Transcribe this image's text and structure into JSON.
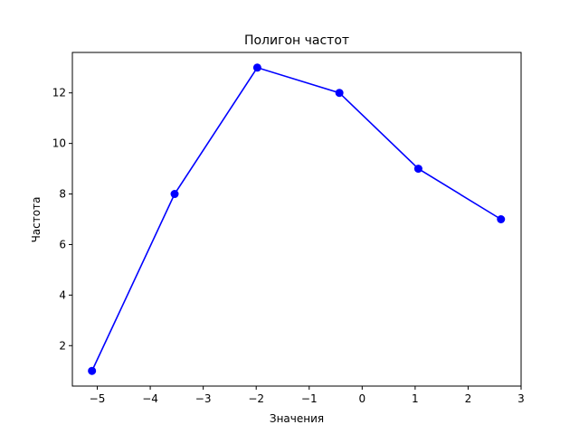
{
  "chart_data": {
    "type": "line",
    "title": "Полигон частот",
    "xlabel": "Значения",
    "ylabel": "Частота",
    "xlim": [
      -5.47,
      3.0
    ],
    "ylim": [
      0.4,
      13.6
    ],
    "xticks": [
      -5,
      -4,
      -3,
      -2,
      -1,
      0,
      1,
      2,
      3
    ],
    "xtick_labels": [
      "−5",
      "−4",
      "−3",
      "−2",
      "−1",
      "0",
      "1",
      "2",
      "3"
    ],
    "yticks": [
      2,
      4,
      6,
      8,
      10,
      12
    ],
    "ytick_labels": [
      "2",
      "4",
      "6",
      "8",
      "10",
      "12"
    ],
    "grid": false,
    "series": [
      {
        "color": "#0000ff",
        "marker": "circle",
        "x": [
          -5.1,
          -3.54,
          -1.98,
          -0.43,
          1.06,
          2.62
        ],
        "y": [
          1,
          8,
          13,
          12,
          9,
          7
        ]
      }
    ]
  }
}
